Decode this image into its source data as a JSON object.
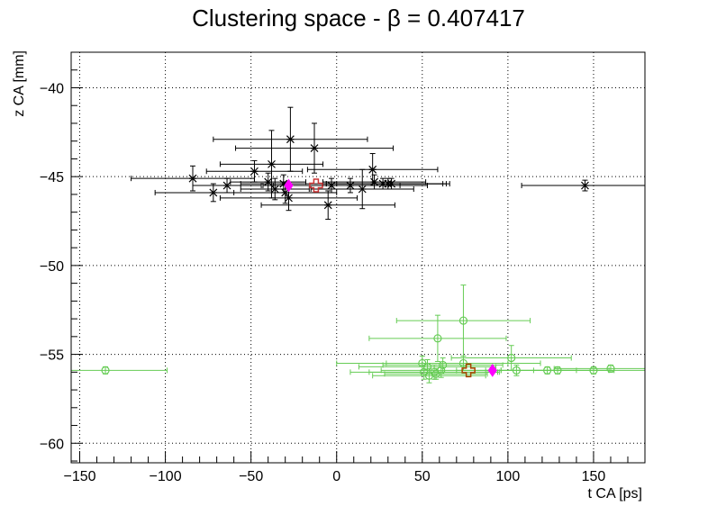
{
  "chart_data": {
    "type": "scatter",
    "title": "Clustering space -  β = 0.407417",
    "xlabel": "t CA [ps]",
    "ylabel": "z CA [mm]",
    "xlim": [
      -155,
      180
    ],
    "ylim": [
      -61.1,
      -38
    ],
    "x_ticks": [
      -150,
      -100,
      -50,
      0,
      50,
      100,
      150
    ],
    "x_tick_labels": [
      "−150",
      "−100",
      "−50",
      "0",
      "50",
      "100",
      "150"
    ],
    "y_ticks": [
      -60,
      -55,
      -50,
      -45,
      -40
    ],
    "y_tick_labels": [
      "−60",
      "−55",
      "−50",
      "−45",
      "−40"
    ],
    "grid": true,
    "grid_style": "dotted",
    "series": [
      {
        "color": "#000000",
        "marker": "star",
        "points": [
          {
            "x": -84,
            "y": -45.1,
            "xerr": 36,
            "yerr": 0.7
          },
          {
            "x": -72,
            "y": -45.9,
            "xerr": 34,
            "yerr": 0.5
          },
          {
            "x": -64,
            "y": -45.5,
            "xerr": 20,
            "yerr": 0.4
          },
          {
            "x": -48,
            "y": -44.7,
            "xerr": 28,
            "yerr": 0.6
          },
          {
            "x": -40,
            "y": -45.3,
            "xerr": 22,
            "yerr": 0.5
          },
          {
            "x": -38,
            "y": -44.3,
            "xerr": 30,
            "yerr": 1.9
          },
          {
            "x": -36,
            "y": -45.7,
            "xerr": 20,
            "yerr": 0.6
          },
          {
            "x": -31,
            "y": -45.4,
            "xerr": 25,
            "yerr": 0.5
          },
          {
            "x": -30,
            "y": -45.9,
            "xerr": 30,
            "yerr": 0.6
          },
          {
            "x": -28,
            "y": -46.2,
            "xerr": 40,
            "yerr": 0.7
          },
          {
            "x": -27,
            "y": -42.9,
            "xerr": 45,
            "yerr": 1.8
          },
          {
            "x": -13,
            "y": -43.4,
            "xerr": 46,
            "yerr": 1.4
          },
          {
            "x": -5,
            "y": -46.6,
            "xerr": 39,
            "yerr": 0.8
          },
          {
            "x": -3,
            "y": -45.5,
            "xerr": 40,
            "yerr": 0.4
          },
          {
            "x": 8,
            "y": -45.5,
            "xerr": 45,
            "yerr": 0.4
          },
          {
            "x": 15,
            "y": -45.7,
            "xerr": 30,
            "yerr": 1.1
          },
          {
            "x": 21,
            "y": -44.6,
            "xerr": 38,
            "yerr": 0.9
          },
          {
            "x": 22,
            "y": -45.3,
            "xerr": 30,
            "yerr": 0.4
          },
          {
            "x": 27,
            "y": -45.4,
            "xerr": 35,
            "yerr": 0.3
          },
          {
            "x": 30,
            "y": -45.4,
            "xerr": 36,
            "yerr": 0.3
          },
          {
            "x": 32,
            "y": -45.4,
            "xerr": 32,
            "yerr": 0.3
          },
          {
            "x": 145,
            "y": -45.5,
            "xerr": 37,
            "yerr": 0.3
          }
        ]
      },
      {
        "color": "#66cc55",
        "marker": "open-circle",
        "points": [
          {
            "x": -135,
            "y": -55.9,
            "xerr": 36,
            "yerr": 0.2
          },
          {
            "x": 50,
            "y": -55.5,
            "xerr": 50,
            "yerr": 0.4
          },
          {
            "x": 51,
            "y": -56.0,
            "xerr": 43,
            "yerr": 0.4
          },
          {
            "x": 53,
            "y": -55.7,
            "xerr": 40,
            "yerr": 0.4
          },
          {
            "x": 54,
            "y": -56.2,
            "xerr": 33,
            "yerr": 0.4
          },
          {
            "x": 57,
            "y": -56.0,
            "xerr": 38,
            "yerr": 0.4
          },
          {
            "x": 58,
            "y": -56.1,
            "xerr": 30,
            "yerr": 0.3
          },
          {
            "x": 59,
            "y": -54.1,
            "xerr": 40,
            "yerr": 1.3
          },
          {
            "x": 61,
            "y": -55.9,
            "xerr": 35,
            "yerr": 0.4
          },
          {
            "x": 62,
            "y": -55.6,
            "xerr": 35,
            "yerr": 0.4
          },
          {
            "x": 74,
            "y": -55.5,
            "xerr": 45,
            "yerr": 0.4
          },
          {
            "x": 74,
            "y": -53.1,
            "xerr": 39,
            "yerr": 2.0
          },
          {
            "x": 102,
            "y": -55.2,
            "xerr": 35,
            "yerr": 0.7
          },
          {
            "x": 105,
            "y": -55.9,
            "xerr": 35,
            "yerr": 0.3
          },
          {
            "x": 123,
            "y": -55.9,
            "xerr": 36,
            "yerr": 0.2
          },
          {
            "x": 129,
            "y": -55.9,
            "xerr": 33,
            "yerr": 0.2
          },
          {
            "x": 150,
            "y": -55.9,
            "xerr": 35,
            "yerr": 0.2
          },
          {
            "x": 160,
            "y": -55.8,
            "xerr": 33,
            "yerr": 0.2
          }
        ]
      }
    ],
    "cluster_centers": [
      {
        "x": -28,
        "y": -45.5,
        "marker": "diamond",
        "color": "#ff00ff"
      },
      {
        "x": 91,
        "y": -55.9,
        "marker": "diamond",
        "color": "#ff00ff"
      }
    ],
    "reference_markers": [
      {
        "x": -12,
        "y": -45.5,
        "marker": "open-cross",
        "color": "#cc3333"
      },
      {
        "x": 77,
        "y": -55.9,
        "marker": "open-cross",
        "color": "#aa4400"
      }
    ]
  }
}
